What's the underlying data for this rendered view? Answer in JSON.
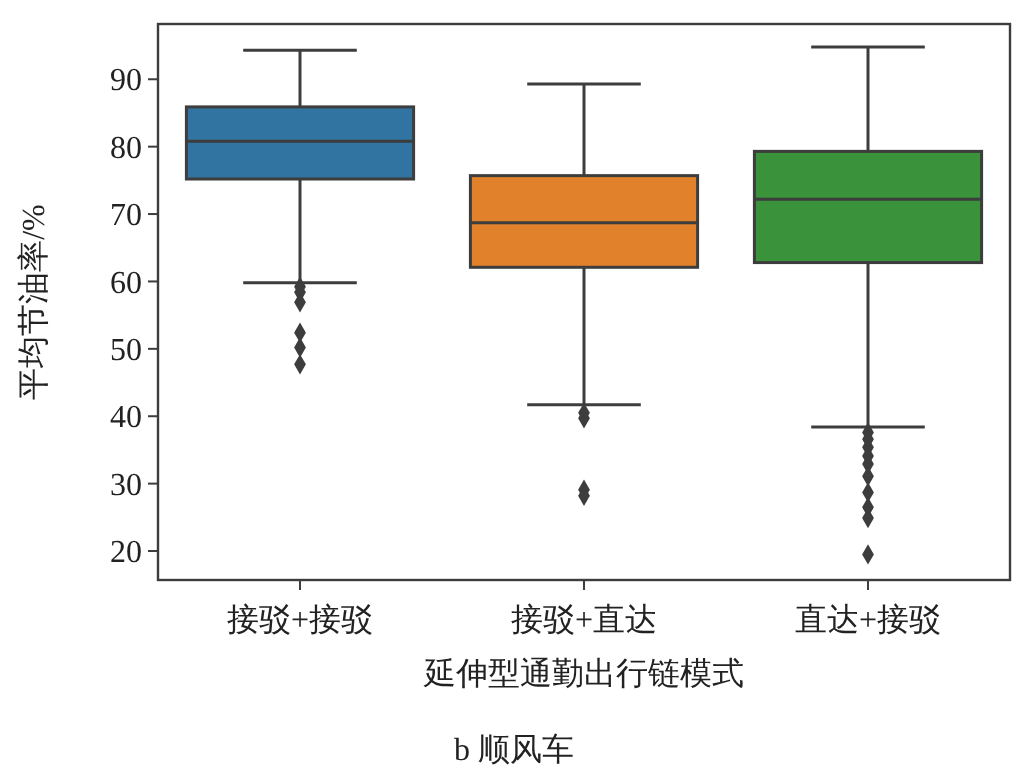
{
  "chart_data": {
    "type": "box",
    "xlabel": "延伸型通勤出行链模式",
    "ylabel": "平均节油率/%",
    "annotations": [
      "b 顺风车"
    ],
    "categories": [
      "接驳+接驳",
      "接驳+直达",
      "直达+接驳"
    ],
    "colors": [
      "#3274a1",
      "#e1812c",
      "#3a923a"
    ],
    "boxes": [
      {
        "low": 59.8,
        "q1": 75.2,
        "median": 80.8,
        "q3": 85.9,
        "high": 94.3,
        "outliers": [
          59.2,
          58.4,
          56.9,
          52.4,
          50.2,
          47.7
        ]
      },
      {
        "low": 41.7,
        "q1": 62.1,
        "median": 68.7,
        "q3": 75.7,
        "high": 89.3,
        "outliers": [
          40.5,
          39.7,
          29.1,
          28.2
        ]
      },
      {
        "low": 38.4,
        "q1": 62.8,
        "median": 72.2,
        "q3": 79.3,
        "high": 94.8,
        "outliers": [
          37.6,
          36.6,
          35.4,
          34.1,
          32.9,
          31.1,
          28.7,
          26.5,
          24.9,
          19.5
        ]
      }
    ],
    "ylim": [
      15.7,
      98.2
    ],
    "yticks": [
      20,
      30,
      40,
      50,
      60,
      70,
      80,
      90
    ],
    "marker": "diamond",
    "grid": false
  }
}
